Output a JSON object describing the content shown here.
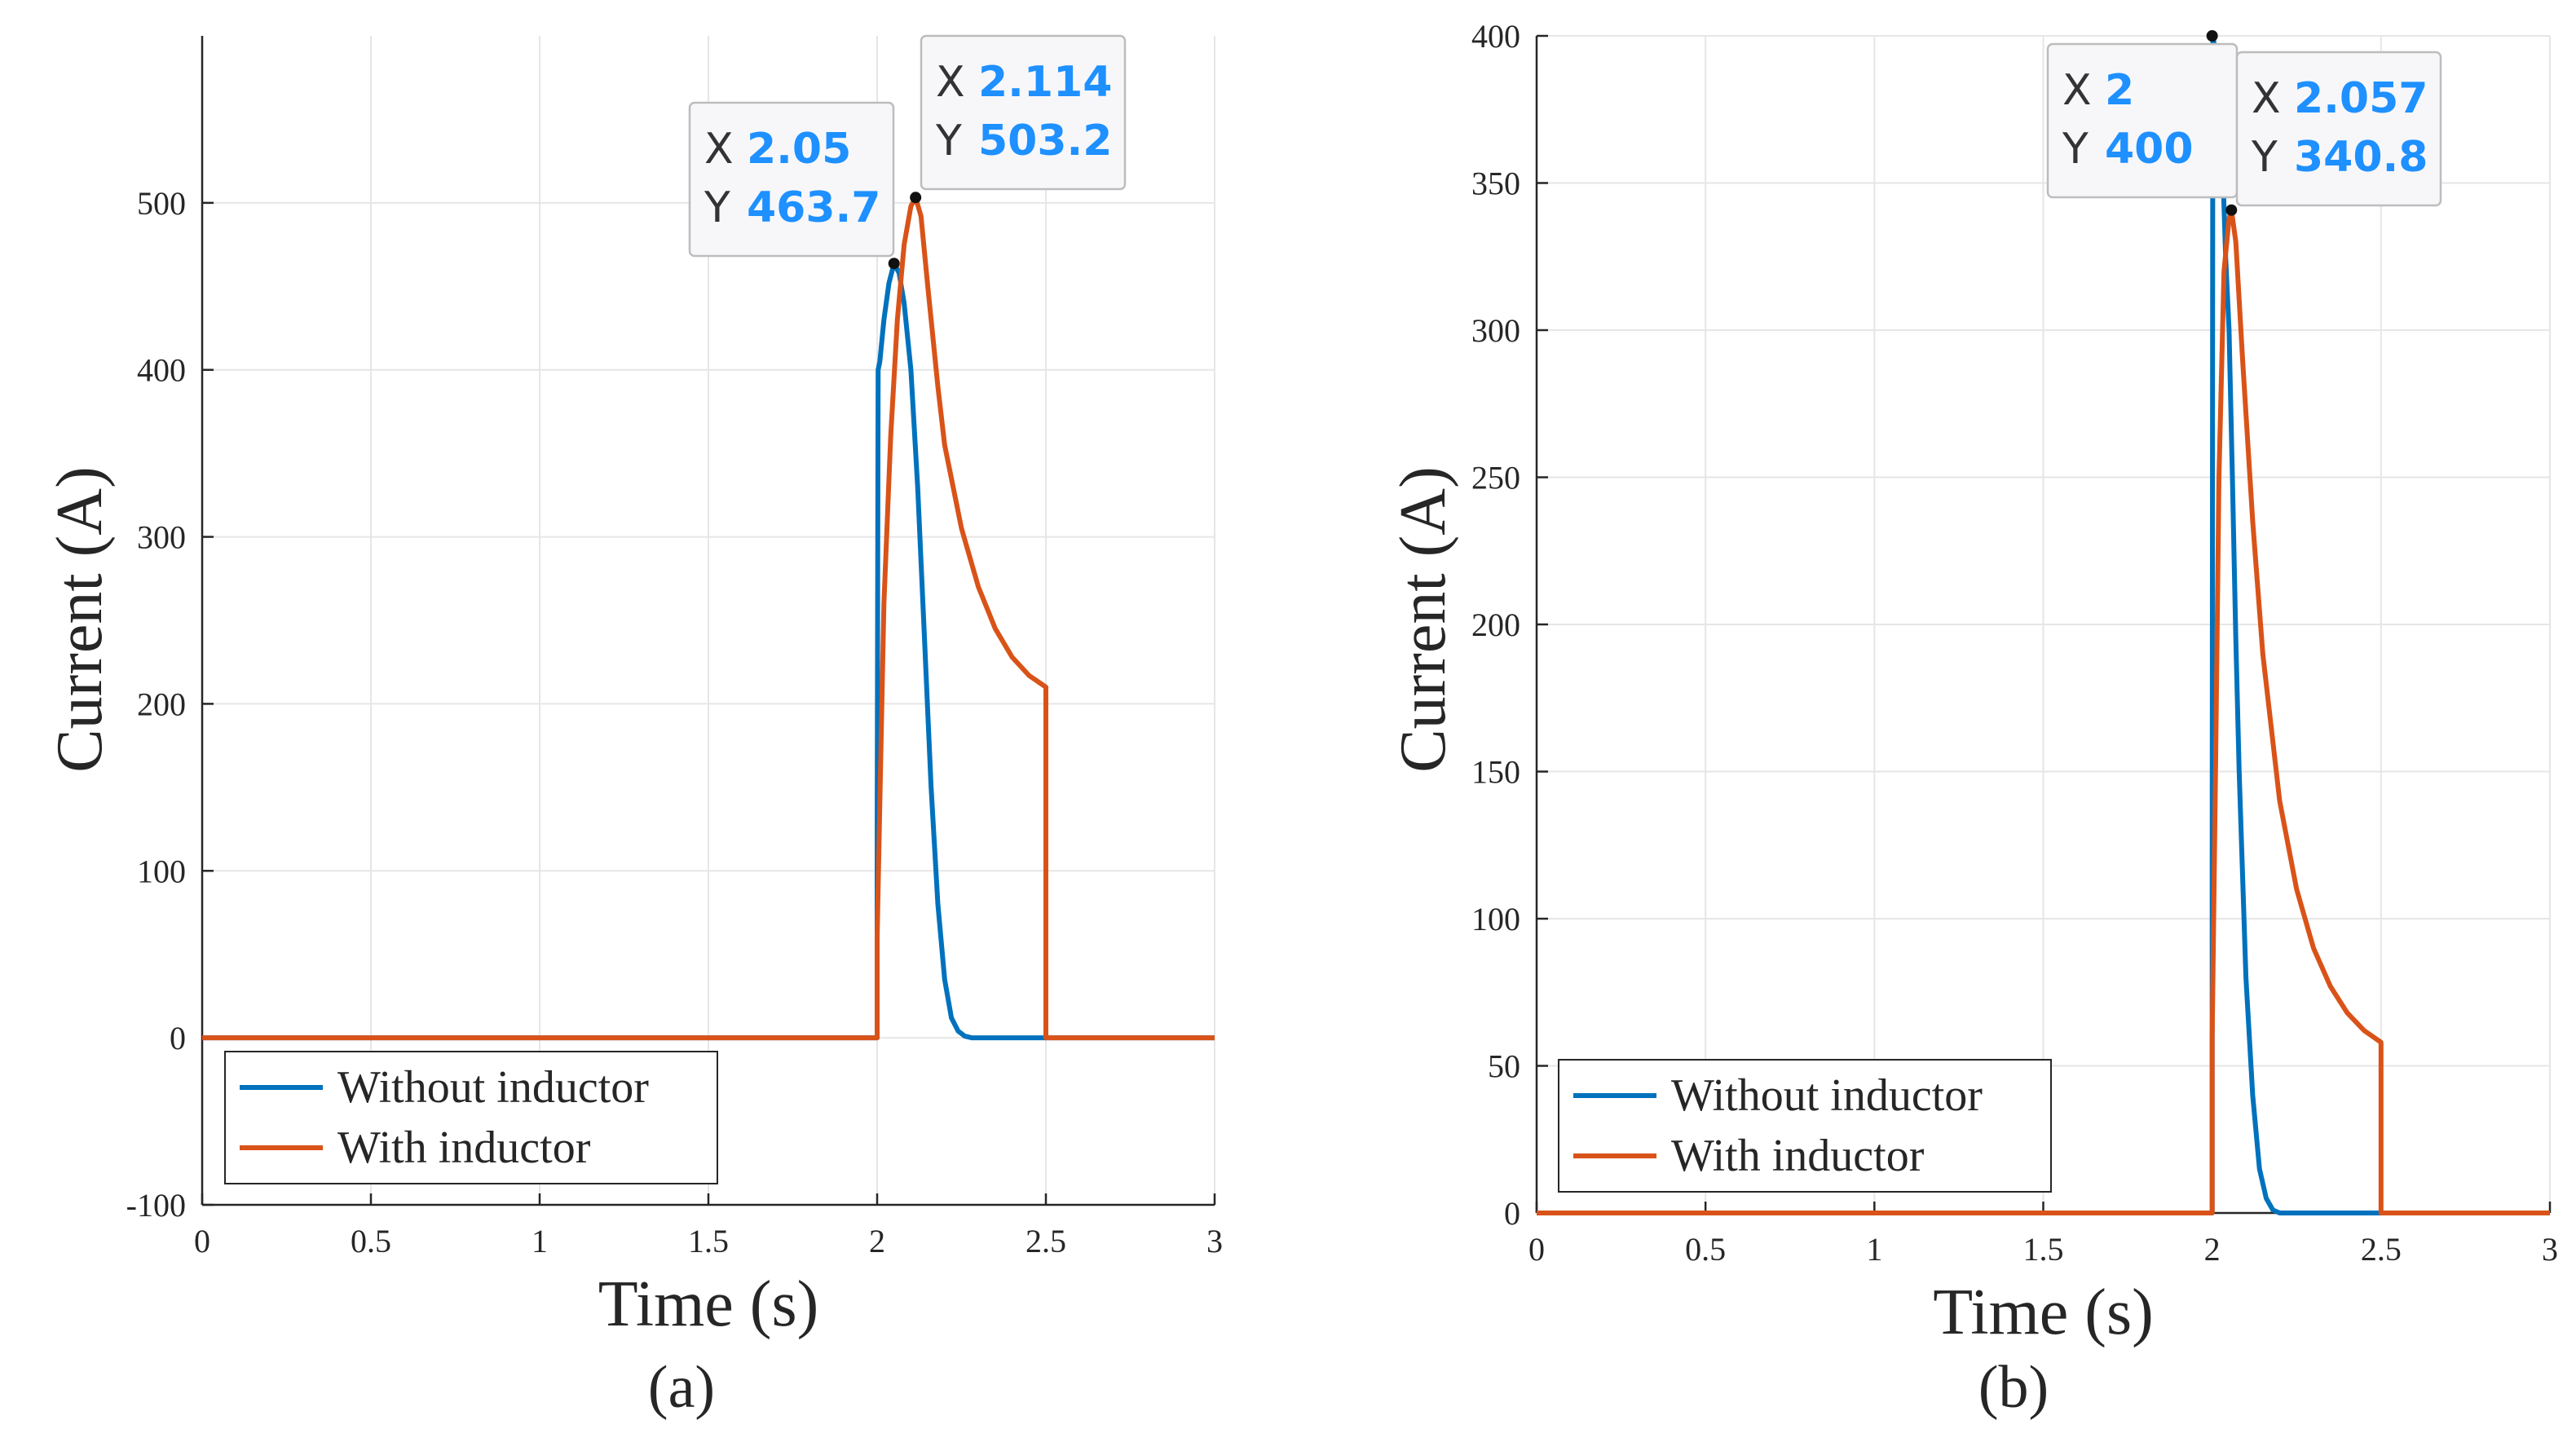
{
  "colors": {
    "series_without": "#0072BD",
    "series_with": "#D95319",
    "datatip_value": "#1E90FF",
    "grid": "#E6E6E6",
    "axis": "#262626"
  },
  "chart_data": [
    {
      "type": "line",
      "panel_label": "(a)",
      "xlabel": "Time (s)",
      "ylabel": "Current (A)",
      "xlim": [
        0,
        3
      ],
      "ylim": [
        -100,
        600
      ],
      "xticks": [
        0,
        0.5,
        1,
        1.5,
        2,
        2.5,
        3
      ],
      "xtick_labels": [
        "0",
        "0.5",
        "1",
        "1.5",
        "2",
        "2.5",
        "3"
      ],
      "yticks": [
        -100,
        0,
        100,
        200,
        300,
        400,
        500
      ],
      "ytick_labels": [
        "-100",
        "0",
        "100",
        "200",
        "300",
        "400",
        "500"
      ],
      "grid": true,
      "legend_position": "bottom-left",
      "series": [
        {
          "name": "Without inductor",
          "color": "#0072BD",
          "x": [
            0,
            2.0,
            2.0,
            2.003,
            2.008,
            2.02,
            2.035,
            2.05,
            2.065,
            2.08,
            2.1,
            2.12,
            2.14,
            2.16,
            2.18,
            2.2,
            2.22,
            2.24,
            2.26,
            2.28,
            2.3,
            2.5,
            3.0
          ],
          "y": [
            0,
            0,
            120,
            400,
            405,
            430,
            452,
            463.7,
            458,
            440,
            400,
            330,
            240,
            150,
            80,
            35,
            12,
            4,
            1,
            0,
            0,
            0,
            0
          ]
        },
        {
          "name": "With inductor",
          "color": "#D95319",
          "x": [
            0,
            2.0,
            2.0,
            2.01,
            2.02,
            2.04,
            2.06,
            2.08,
            2.1,
            2.114,
            2.13,
            2.15,
            2.18,
            2.2,
            2.25,
            2.3,
            2.35,
            2.4,
            2.45,
            2.5,
            2.5,
            3.0
          ],
          "y": [
            0,
            0,
            60,
            160,
            260,
            360,
            430,
            475,
            498,
            503.2,
            492,
            450,
            390,
            355,
            305,
            270,
            245,
            228,
            217,
            210,
            0,
            0
          ]
        }
      ],
      "datatips": [
        {
          "x_label": "X",
          "x_value": "2.05",
          "y_label": "Y",
          "y_value": "463.7",
          "at_x": 2.05,
          "at_y": 463.7
        },
        {
          "x_label": "X",
          "x_value": "2.114",
          "y_label": "Y",
          "y_value": "503.2",
          "at_x": 2.114,
          "at_y": 503.2
        }
      ]
    },
    {
      "type": "line",
      "panel_label": "(b)",
      "xlabel": "Time (s)",
      "ylabel": "Current (A)",
      "xlim": [
        0,
        3
      ],
      "ylim": [
        0,
        400
      ],
      "xticks": [
        0,
        0.5,
        1,
        1.5,
        2,
        2.5,
        3
      ],
      "xtick_labels": [
        "0",
        "0.5",
        "1",
        "1.5",
        "2",
        "2.5",
        "3"
      ],
      "yticks": [
        0,
        50,
        100,
        150,
        200,
        250,
        300,
        350,
        400
      ],
      "ytick_labels": [
        "0",
        "50",
        "100",
        "150",
        "200",
        "250",
        "300",
        "350",
        "400"
      ],
      "grid": true,
      "legend_position": "bottom-left",
      "series": [
        {
          "name": "Without inductor",
          "color": "#0072BD",
          "x": [
            0,
            2.0,
            2.0,
            2.002,
            2.005,
            2.01,
            2.02,
            2.03,
            2.04,
            2.05,
            2.06,
            2.07,
            2.08,
            2.1,
            2.12,
            2.14,
            2.16,
            2.18,
            2.2,
            2.5,
            3.0
          ],
          "y": [
            0,
            0,
            120,
            400,
            398,
            392,
            375,
            360,
            325,
            300,
            250,
            195,
            150,
            80,
            40,
            15,
            5,
            1,
            0,
            0,
            0
          ]
        },
        {
          "name": "With inductor",
          "color": "#D95319",
          "x": [
            0,
            2.0,
            2.0,
            2.01,
            2.02,
            2.035,
            2.05,
            2.057,
            2.07,
            2.09,
            2.12,
            2.15,
            2.2,
            2.25,
            2.3,
            2.35,
            2.4,
            2.45,
            2.5,
            2.5,
            3.0
          ],
          "y": [
            0,
            0,
            60,
            150,
            250,
            320,
            338,
            340.8,
            330,
            290,
            235,
            190,
            140,
            110,
            90,
            77,
            68,
            62,
            58,
            0,
            0
          ]
        }
      ],
      "datatips": [
        {
          "x_label": "X",
          "x_value": "2",
          "y_label": "Y",
          "y_value": "400",
          "at_x": 2.0,
          "at_y": 400
        },
        {
          "x_label": "X",
          "x_value": "2.057",
          "y_label": "Y",
          "y_value": "340.8",
          "at_x": 2.057,
          "at_y": 340.8
        }
      ]
    }
  ]
}
